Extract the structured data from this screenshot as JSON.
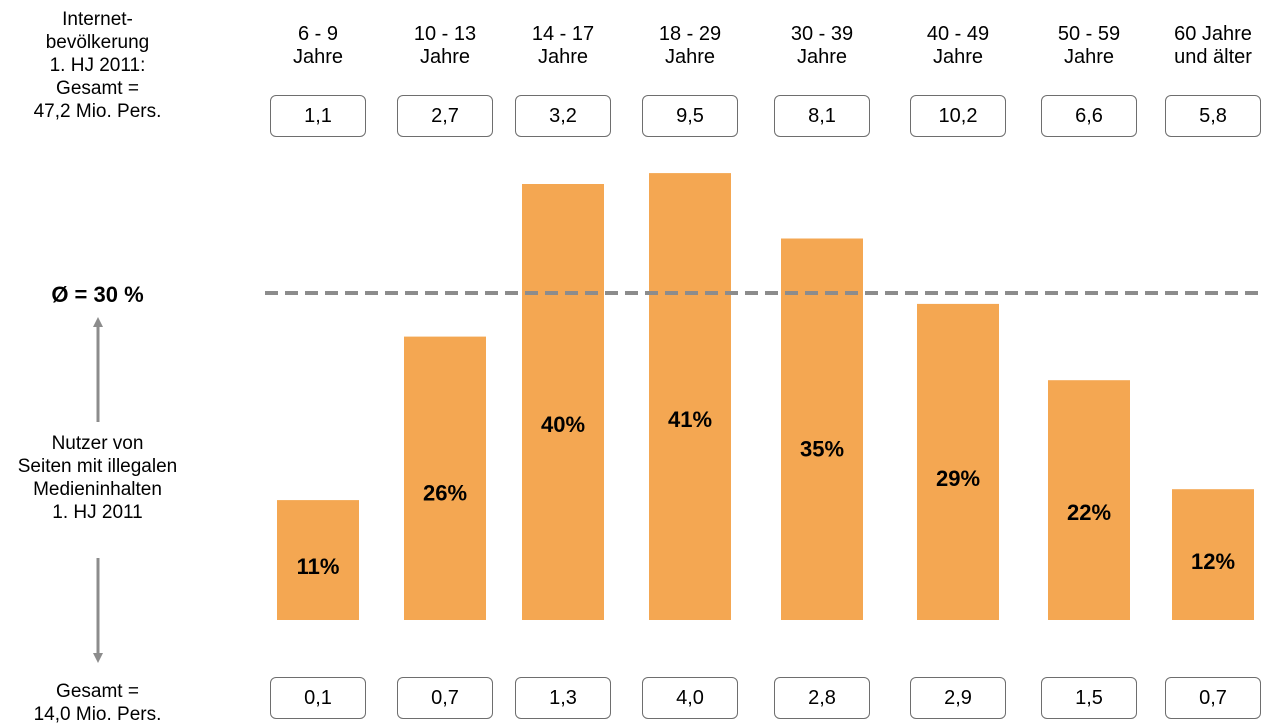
{
  "left_panel": {
    "top_label": "Internet-\nbevölkerung\n1. HJ 2011:\nGesamt =\n47,2 Mio. Pers.",
    "average_label": "Ø = 30 %",
    "middle_label": "Nutzer von\nSeiten mit illegalen\nMedieninhalten\n1. HJ 2011",
    "bottom_label": "Gesamt =\n14,0 Mio. Pers."
  },
  "colors": {
    "bar": "#F4A752",
    "average_line": "#8C8C8C",
    "arrow": "#8C8C8C"
  },
  "chart_data": {
    "type": "bar",
    "categories": [
      "6 - 9\nJahre",
      "10 - 13\nJahre",
      "14 - 17\nJahre",
      "18 - 29\nJahre",
      "30 - 39\nJahre",
      "40 - 49\nJahre",
      "50 - 59\nJahre",
      "60 Jahre\nund älter"
    ],
    "values": [
      11,
      26,
      40,
      41,
      35,
      29,
      22,
      12
    ],
    "value_labels": [
      "11%",
      "26%",
      "40%",
      "41%",
      "35%",
      "29%",
      "22%",
      "12%"
    ],
    "internet_population": [
      "1,1",
      "2,7",
      "3,2",
      "9,5",
      "8,1",
      "10,2",
      "6,6",
      "5,8"
    ],
    "illegal_users": [
      "0,1",
      "0,7",
      "1,3",
      "4,0",
      "2,8",
      "2,9",
      "1,5",
      "0,7"
    ],
    "average": 30,
    "ylim": [
      0,
      45
    ],
    "grid": false,
    "legend": "none"
  }
}
